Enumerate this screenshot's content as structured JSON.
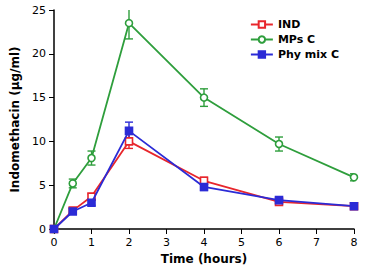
{
  "chart_data": {
    "type": "line",
    "x_label": "Time (hours)",
    "y_label": "Indomethacin (μg/ml)",
    "x": [
      0,
      0.5,
      1,
      2,
      4,
      6,
      8
    ],
    "series": [
      {
        "name": "IND",
        "color": "#e8262c",
        "marker": "open-square",
        "values": [
          0,
          2.1,
          3.7,
          10.0,
          5.5,
          3.1,
          2.6
        ],
        "errors": [
          0,
          0.3,
          0.3,
          0.8,
          0.4,
          0.3,
          0.3
        ]
      },
      {
        "name": "MPs C",
        "color": "#2e9e3c",
        "marker": "open-circle",
        "values": [
          0,
          5.2,
          8.1,
          23.5,
          15.0,
          9.7,
          5.9
        ],
        "errors": [
          0,
          0.5,
          0.8,
          1.8,
          1.0,
          0.8,
          0.4
        ]
      },
      {
        "name": "Phy mix C",
        "color": "#2b2bd6",
        "marker": "filled-square",
        "values": [
          0,
          2.0,
          3.0,
          11.2,
          4.8,
          3.3,
          2.6
        ],
        "errors": [
          0,
          0.3,
          0.3,
          1.0,
          0.4,
          0.3,
          0.3
        ]
      }
    ],
    "xlim": [
      0,
      8
    ],
    "xticks": [
      0,
      1,
      2,
      3,
      4,
      5,
      6,
      7,
      8
    ],
    "ylim": [
      0,
      25
    ],
    "yticks": [
      0,
      5,
      10,
      15,
      20,
      25
    ],
    "grid": false,
    "legend": "upper right"
  }
}
